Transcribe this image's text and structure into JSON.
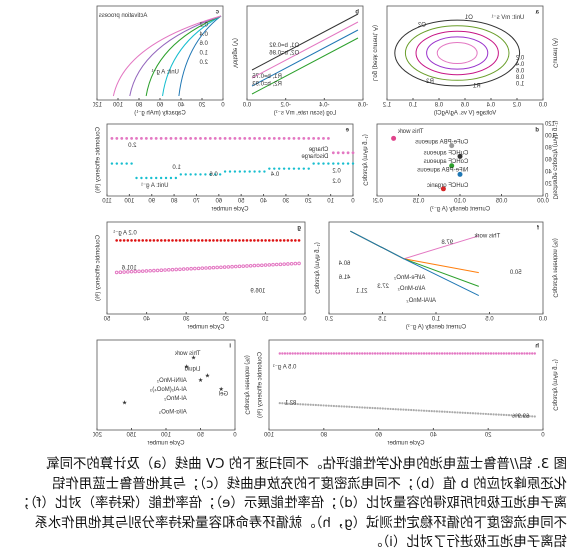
{
  "figure": {
    "panels": [
      {
        "label": "a",
        "xlabel": "Voltage (V vs. Ag/AgCl)",
        "ylabel": "Current (A)",
        "xticks": [
          "0.0",
          "0.2",
          "0.4",
          "0.6",
          "0.8",
          "1.0",
          "1.2"
        ],
        "notes": [
          "O1",
          "O2",
          "R1",
          "R2",
          "Unit: mV s⁻¹",
          "0.2",
          "0.4",
          "0.6",
          "0.8",
          "1.0"
        ]
      },
      {
        "label": "b",
        "xlabel": "Log (scan rate, mV s⁻¹)",
        "ylabel": "Log (peak current, A)",
        "xticks": [
          "-0.6",
          "-0.4",
          "-0.2",
          "0.0"
        ],
        "notes": [
          "O1, b=0.92",
          "O2, b=0.86",
          "R1, b=0.75",
          "R2, b=0.93"
        ]
      },
      {
        "label": "c",
        "xlabel": "Capacity (mAh g⁻¹)",
        "ylabel": "Voltage (V)",
        "xticks": [
          "0",
          "20",
          "40",
          "60",
          "80",
          "100",
          "120"
        ],
        "notes": [
          "Activation process",
          "Unit: A g⁻¹",
          "0.2",
          "0.4",
          "0.6",
          "1.0",
          "2.0"
        ]
      },
      {
        "label": "d",
        "xlabel": "Current density (A g⁻¹)",
        "ylabel": "Discharge capacity (mAh g⁻¹)",
        "xticks": [
          "0.00",
          "0.05",
          "0.10",
          "0.15",
          "0.20"
        ],
        "yticks": [
          "0",
          "20",
          "40",
          "60",
          "80",
          "100",
          "120"
        ],
        "notes": [
          "This work",
          "CuFe-PBA aqueous",
          "CuHCF aqueous",
          "CoHCF aqueous",
          "NiFe-PBA aqueous",
          "CuHCF organic"
        ]
      },
      {
        "label": "e",
        "xlabel": "Cycle number",
        "ylabel": "Capacity (mAh g⁻¹)",
        "y2label": "Coulombic efficiency (%)",
        "xticks": [
          "0",
          "10",
          "20",
          "30",
          "40",
          "50",
          "60",
          "70",
          "80",
          "90",
          "100",
          "110"
        ],
        "notes": [
          "Charge",
          "Discharge",
          "0.2",
          "0.4",
          "0.6",
          "1.0",
          "2.0",
          "0.2",
          "Unit: A g⁻¹"
        ]
      },
      {
        "label": "f",
        "xlabel": "Current density (A g⁻¹)",
        "ylabel": "Capacity retention (%)",
        "xticks": [
          "0.0",
          "0.5",
          "1.0",
          "1.5",
          "2.0"
        ],
        "notes": [
          "This work",
          "97.8",
          "50.0",
          "Al/Fe-MnO₂",
          "Al/α-MnO₂",
          "Al/Al-MnO₂",
          "60.4",
          "41.6",
          "27.3",
          "21.1"
        ]
      },
      {
        "label": "g",
        "xlabel": "Cycle number",
        "ylabel": "Capacity (mAh g⁻¹)",
        "y2label": "Coulombic efficiency (%)",
        "xticks": [
          "0",
          "10",
          "20",
          "30",
          "40",
          "50"
        ],
        "notes": [
          "0.2 A g⁻¹",
          "101.6",
          "106.9"
        ]
      },
      {
        "label": "h",
        "xlabel": "Cycle number",
        "ylabel": "Capacity (mAh g⁻¹)",
        "y2label": "Coulombic efficiency (%)",
        "xticks": [
          "0",
          "20",
          "40",
          "60",
          "80",
          "100"
        ],
        "notes": [
          "0.5 A g⁻¹",
          "82.1",
          "69.9%"
        ]
      },
      {
        "label": "i",
        "xlabel": "Cycle number",
        "ylabel": "Capacity retention (%)",
        "xticks": [
          "0",
          "50",
          "100",
          "150",
          "200"
        ],
        "notes": [
          "This work",
          "Liquid",
          "Gel",
          "Al/Ni-MnO₂",
          "Al-Al₂(MoO₄)₃",
          "Al-MnO₂",
          "Al/α-MoO₃"
        ]
      }
    ],
    "caption": [
      "图 3. 铝//普鲁士蓝电池的电化学性能评估。不同扫速下的 CV 曲线（a）及计算的不同氧",
      "化还原峰对应的 b 值（b）；不同电流密度下的充放电曲线（c）；与其他普鲁士蓝用作铝",
      "离子电池正极时所取得的容量对比（d）；倍率性能展示（e）；倍率性能（保持率）对比（f）；",
      "不同电流密度下的循环稳定性测试（g，h）。就循环寿命和容量保持率分别与其他用作水系",
      "铝离子电池正极进行了对比（i）。"
    ]
  }
}
